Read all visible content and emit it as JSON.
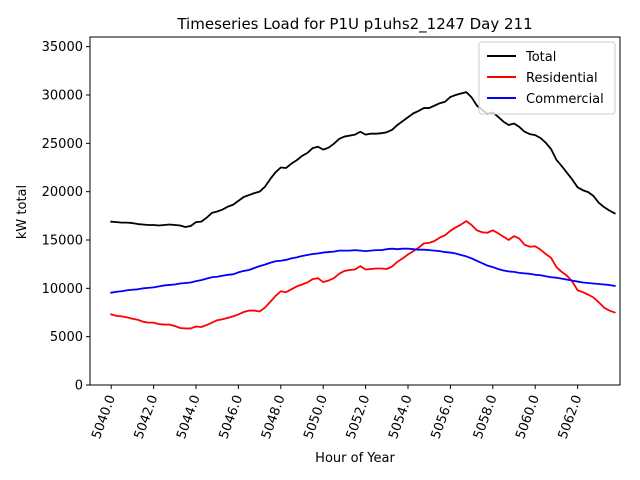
{
  "chart_data": {
    "type": "line",
    "title": "Timeseries Load for P1U p1uhs2_1247  Day 211",
    "xlabel": "Hour of Year",
    "ylabel": "kW total",
    "xlim": [
      5039.0,
      5064.0
    ],
    "ylim": [
      0,
      36000
    ],
    "xticks": [
      5040,
      5042,
      5044,
      5046,
      5048,
      5050,
      5052,
      5054,
      5056,
      5058,
      5060,
      5062
    ],
    "xtick_labels": [
      "5040.0",
      "5042.0",
      "5044.0",
      "5046.0",
      "5048.0",
      "5050.0",
      "5052.0",
      "5054.0",
      "5056.0",
      "5058.0",
      "5060.0",
      "5062.0"
    ],
    "yticks": [
      0,
      5000,
      10000,
      15000,
      20000,
      25000,
      30000,
      35000
    ],
    "ytick_labels": [
      "0",
      "5000",
      "10000",
      "15000",
      "20000",
      "25000",
      "30000",
      "35000"
    ],
    "legend_position": "top-right",
    "x": [
      5040.0,
      5040.25,
      5040.5,
      5040.75,
      5041.0,
      5041.25,
      5041.5,
      5041.75,
      5042.0,
      5042.25,
      5042.5,
      5042.75,
      5043.0,
      5043.25,
      5043.5,
      5043.75,
      5044.0,
      5044.25,
      5044.5,
      5044.75,
      5045.0,
      5045.25,
      5045.5,
      5045.75,
      5046.0,
      5046.25,
      5046.5,
      5046.75,
      5047.0,
      5047.25,
      5047.5,
      5047.75,
      5048.0,
      5048.25,
      5048.5,
      5048.75,
      5049.0,
      5049.25,
      5049.5,
      5049.75,
      5050.0,
      5050.25,
      5050.5,
      5050.75,
      5051.0,
      5051.25,
      5051.5,
      5051.75,
      5052.0,
      5052.25,
      5052.5,
      5052.75,
      5053.0,
      5053.25,
      5053.5,
      5053.75,
      5054.0,
      5054.25,
      5054.5,
      5054.75,
      5055.0,
      5055.25,
      5055.5,
      5055.75,
      5056.0,
      5056.25,
      5056.5,
      5056.75,
      5057.0,
      5057.25,
      5057.5,
      5057.75,
      5058.0,
      5058.25,
      5058.5,
      5058.75,
      5059.0,
      5059.25,
      5059.5,
      5059.75,
      5060.0,
      5060.25,
      5060.5,
      5060.75,
      5061.0,
      5061.25,
      5061.5,
      5061.75,
      5062.0,
      5062.25,
      5062.5,
      5062.75,
      5063.0,
      5063.25,
      5063.5,
      5063.75
    ],
    "series": [
      {
        "name": "Total",
        "color": "#000000",
        "values": [
          16900,
          16850,
          16800,
          16800,
          16750,
          16650,
          16600,
          16550,
          16550,
          16500,
          16550,
          16600,
          16550,
          16500,
          16350,
          16450,
          16850,
          16900,
          17300,
          17800,
          17950,
          18150,
          18450,
          18650,
          19050,
          19450,
          19650,
          19850,
          20000,
          20500,
          21300,
          22000,
          22500,
          22450,
          22900,
          23250,
          23700,
          24000,
          24500,
          24650,
          24350,
          24550,
          24950,
          25450,
          25700,
          25800,
          25900,
          26200,
          25900,
          26000,
          26000,
          26050,
          26150,
          26400,
          26900,
          27300,
          27700,
          28100,
          28350,
          28650,
          28650,
          28900,
          29150,
          29300,
          29800,
          30000,
          30150,
          30300,
          29750,
          28900,
          28450,
          28050,
          28200,
          27750,
          27250,
          26900,
          27050,
          26700,
          26200,
          25950,
          25850,
          25550,
          25050,
          24400,
          23300,
          22650,
          21950,
          21250,
          20450,
          20150,
          19950,
          19550,
          18850,
          18400,
          18050,
          17750
        ]
      },
      {
        "name": "Residential",
        "color": "#ff0000",
        "values": [
          7300,
          7150,
          7100,
          7000,
          6850,
          6750,
          6550,
          6450,
          6450,
          6300,
          6250,
          6250,
          6100,
          5900,
          5850,
          5850,
          6050,
          6000,
          6200,
          6450,
          6700,
          6800,
          6950,
          7100,
          7300,
          7550,
          7700,
          7700,
          7600,
          8000,
          8600,
          9200,
          9700,
          9600,
          9900,
          10200,
          10400,
          10600,
          10950,
          11050,
          10650,
          10800,
          11050,
          11500,
          11800,
          11900,
          11950,
          12300,
          11950,
          12000,
          12050,
          12050,
          12000,
          12250,
          12750,
          13100,
          13500,
          13850,
          14200,
          14650,
          14700,
          14900,
          15250,
          15500,
          15950,
          16300,
          16600,
          16950,
          16550,
          16000,
          15800,
          15750,
          16000,
          15700,
          15350,
          15000,
          15400,
          15150,
          14500,
          14300,
          14350,
          14000,
          13550,
          13150,
          12200,
          11700,
          11300,
          10700,
          9800,
          9600,
          9350,
          9050,
          8550,
          8000,
          7700,
          7500
        ]
      },
      {
        "name": "Commercial",
        "color": "#0000ff",
        "values": [
          9550,
          9650,
          9700,
          9800,
          9850,
          9900,
          10000,
          10050,
          10100,
          10200,
          10300,
          10350,
          10400,
          10500,
          10550,
          10600,
          10750,
          10850,
          11000,
          11150,
          11200,
          11300,
          11400,
          11450,
          11650,
          11800,
          11900,
          12100,
          12300,
          12450,
          12650,
          12800,
          12850,
          12950,
          13100,
          13200,
          13350,
          13450,
          13550,
          13600,
          13700,
          13750,
          13800,
          13900,
          13900,
          13900,
          13950,
          13900,
          13850,
          13900,
          13950,
          13950,
          14050,
          14100,
          14050,
          14100,
          14100,
          14050,
          14000,
          14000,
          13950,
          13900,
          13850,
          13750,
          13700,
          13600,
          13450,
          13300,
          13100,
          12850,
          12600,
          12350,
          12200,
          12000,
          11850,
          11750,
          11700,
          11600,
          11550,
          11500,
          11400,
          11350,
          11250,
          11150,
          11100,
          11000,
          10900,
          10800,
          10700,
          10600,
          10550,
          10500,
          10450,
          10400,
          10350,
          10250
        ]
      }
    ]
  }
}
